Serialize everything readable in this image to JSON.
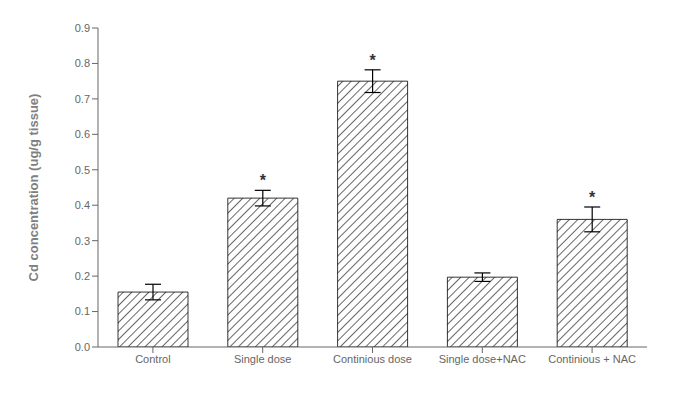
{
  "chart_data": {
    "type": "bar",
    "categories": [
      "Control",
      "Single dose",
      "Continious dose",
      "Single dose+NAC",
      "Continious + NAC"
    ],
    "values": [
      0.155,
      0.42,
      0.75,
      0.197,
      0.36
    ],
    "errors": [
      0.022,
      0.022,
      0.032,
      0.012,
      0.035
    ],
    "ylabel": "Cd concentration (ug/g tissue)",
    "ylim": [
      0,
      0.9
    ],
    "yticks": [
      {
        "value": 0,
        "label": "0.0"
      },
      0.1,
      0.2,
      0.3,
      0.4,
      0.5,
      0.6,
      0.7,
      0.8,
      0.9
    ],
    "color": "#000000",
    "annotations": [
      {
        "category": "Single dose",
        "text": "*"
      },
      {
        "category": "Continious dose",
        "text": "*"
      },
      {
        "category": "Continious + NAC",
        "text": "*"
      }
    ],
    "grid": false
  }
}
